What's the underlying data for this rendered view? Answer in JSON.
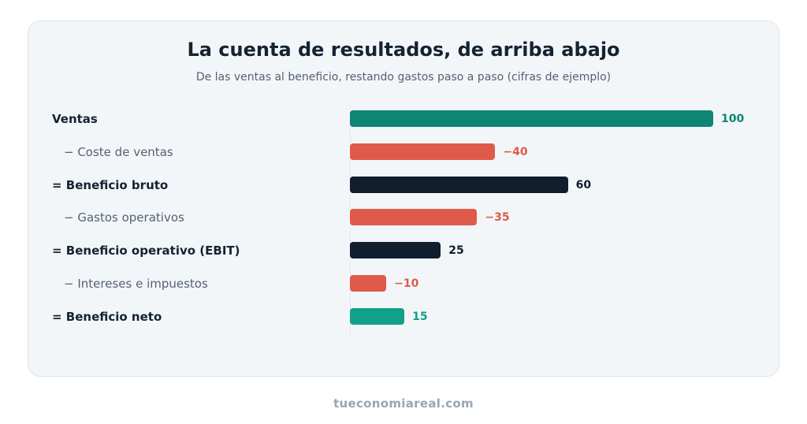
{
  "footer": "tueconomiareal.com",
  "colors": {
    "positive": "#0f8574",
    "negative": "#e05a4c",
    "subtotal": "#111e2d",
    "net": "#12a08a"
  },
  "chart_data": {
    "type": "bar",
    "orientation": "horizontal",
    "title": "La cuenta de resultados, de arriba abajo",
    "subtitle": "De las ventas al beneficio, restando gastos paso a paso (cifras de ejemplo)",
    "xlim": [
      0,
      100
    ],
    "grid": false,
    "rows": [
      {
        "prefix": "",
        "label": "Ventas",
        "value": 100,
        "value_label": "100",
        "kind": "total",
        "color": "#0f8574"
      },
      {
        "prefix": "−",
        "label": "Coste de ventas",
        "value": -40,
        "value_label": "−40",
        "kind": "sub",
        "color": "#e05a4c"
      },
      {
        "prefix": "=",
        "label": "Beneficio bruto",
        "value": 60,
        "value_label": "60",
        "kind": "total",
        "color": "#111e2d"
      },
      {
        "prefix": "−",
        "label": "Gastos operativos",
        "value": -35,
        "value_label": "−35",
        "kind": "sub",
        "color": "#e05a4c"
      },
      {
        "prefix": "=",
        "label": "Beneficio operativo (EBIT)",
        "value": 25,
        "value_label": "25",
        "kind": "total",
        "color": "#111e2d"
      },
      {
        "prefix": "−",
        "label": "Intereses e impuestos",
        "value": -10,
        "value_label": "−10",
        "kind": "sub",
        "color": "#e05a4c"
      },
      {
        "prefix": "=",
        "label": "Beneficio neto",
        "value": 15,
        "value_label": "15",
        "kind": "total",
        "color": "#12a08a"
      }
    ]
  }
}
